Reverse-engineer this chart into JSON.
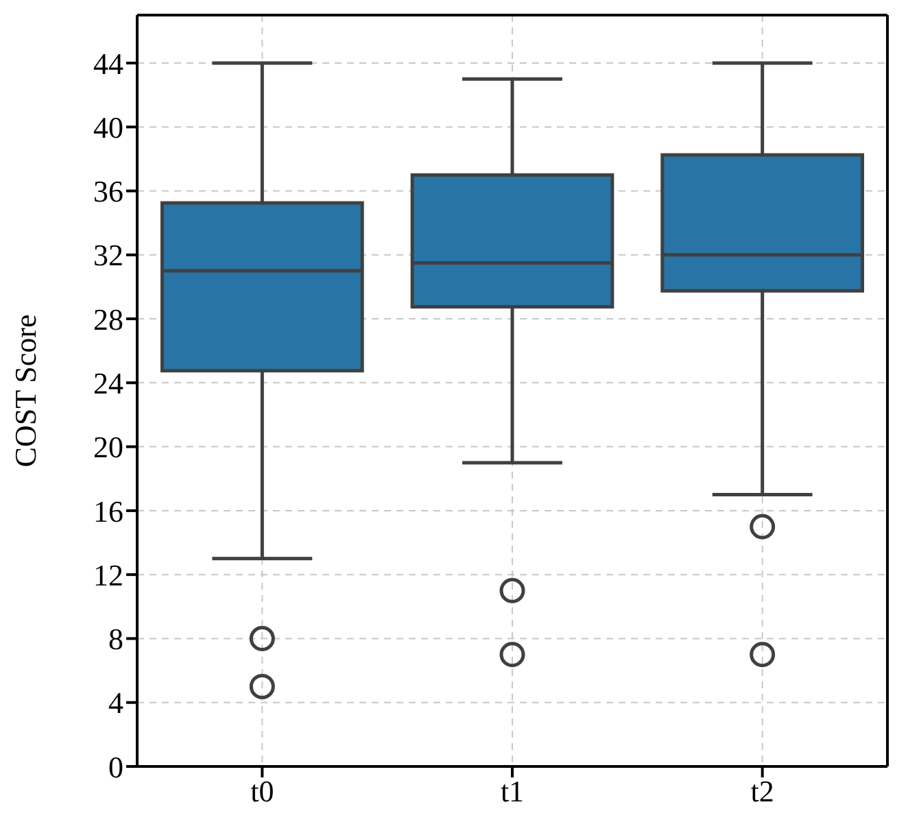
{
  "chart_data": {
    "type": "box",
    "ylabel": "COST Score",
    "categories": [
      "t0",
      "t1",
      "t2"
    ],
    "series": [
      {
        "color": "#2874a6",
        "boxes": [
          {
            "low": 13,
            "q1": 24.75,
            "median": 31,
            "q3": 35.25,
            "high": 44,
            "outliers": [
              8,
              5
            ]
          },
          {
            "low": 19,
            "q1": 28.75,
            "median": 31.5,
            "q3": 37,
            "high": 43,
            "outliers": [
              11,
              7
            ]
          },
          {
            "low": 17,
            "q1": 29.75,
            "median": 32,
            "q3": 38.25,
            "high": 44,
            "outliers": [
              15,
              7
            ]
          }
        ]
      }
    ],
    "ylim": [
      0,
      47
    ],
    "yticks": [
      0,
      4,
      8,
      12,
      16,
      20,
      24,
      28,
      32,
      36,
      40,
      44
    ],
    "grid": true
  }
}
